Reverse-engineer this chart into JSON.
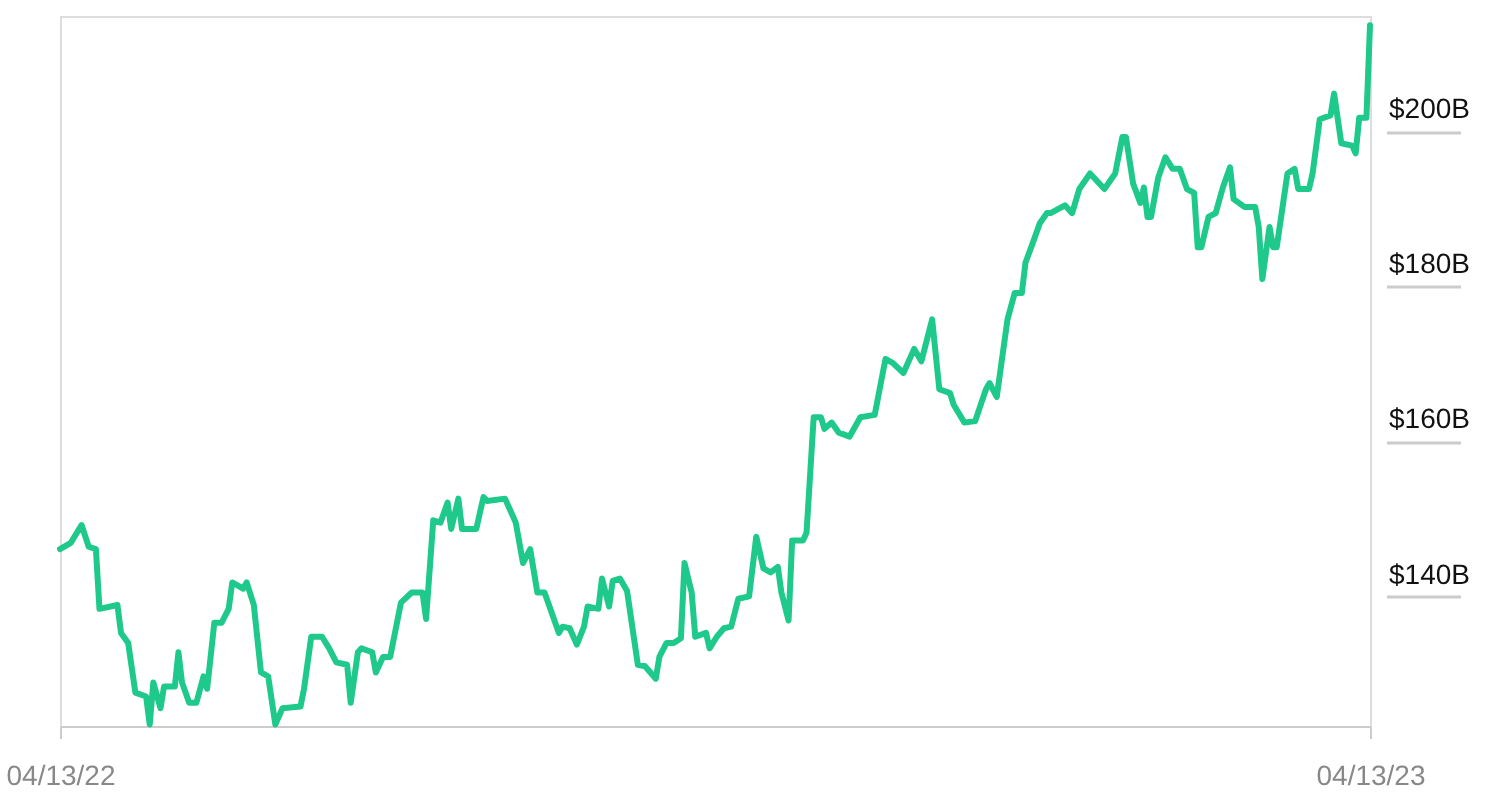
{
  "chart_data": {
    "type": "line",
    "x": [
      "2022-04-13",
      "2022-04-16",
      "2022-04-19",
      "2022-04-21",
      "2022-04-23",
      "2022-04-24",
      "2022-04-29",
      "2022-04-30",
      "2022-05-02",
      "2022-05-04",
      "2022-05-07",
      "2022-05-08",
      "2022-05-09",
      "2022-05-11",
      "2022-05-12",
      "2022-05-15",
      "2022-05-16",
      "2022-05-17",
      "2022-05-19",
      "2022-05-21",
      "2022-05-23",
      "2022-05-24",
      "2022-05-26",
      "2022-05-28",
      "2022-05-30",
      "2022-05-31",
      "2022-06-03",
      "2022-06-04",
      "2022-06-06",
      "2022-06-08",
      "2022-06-10",
      "2022-06-12",
      "2022-06-14",
      "2022-06-19",
      "2022-06-20",
      "2022-06-22",
      "2022-06-25",
      "2022-06-27",
      "2022-06-29",
      "2022-07-02",
      "2022-07-03",
      "2022-07-05",
      "2022-07-06",
      "2022-07-09",
      "2022-07-10",
      "2022-07-12",
      "2022-07-14",
      "2022-07-17",
      "2022-07-20",
      "2022-07-23",
      "2022-07-24",
      "2022-07-26",
      "2022-07-28",
      "2022-07-30",
      "2022-07-31",
      "2022-08-02",
      "2022-08-03",
      "2022-08-07",
      "2022-08-08",
      "2022-08-09",
      "2022-08-10",
      "2022-08-15",
      "2022-08-18",
      "2022-08-20",
      "2022-08-22",
      "2022-08-24",
      "2022-08-26",
      "2022-08-28",
      "2022-08-30",
      "2022-08-31",
      "2022-09-02",
      "2022-09-04",
      "2022-09-06",
      "2022-09-07",
      "2022-09-10",
      "2022-09-11",
      "2022-09-13",
      "2022-09-14",
      "2022-09-16",
      "2022-09-18",
      "2022-09-21",
      "2022-09-23",
      "2022-09-26",
      "2022-09-27",
      "2022-09-29",
      "2022-10-01",
      "2022-10-03",
      "2022-10-04",
      "2022-10-06",
      "2022-10-07",
      "2022-10-10",
      "2022-10-11",
      "2022-10-13",
      "2022-10-15",
      "2022-10-17",
      "2022-10-19",
      "2022-10-22",
      "2022-10-24",
      "2022-10-26",
      "2022-10-28",
      "2022-10-30",
      "2022-10-31",
      "2022-11-02",
      "2022-11-03",
      "2022-11-06",
      "2022-11-07",
      "2022-11-09",
      "2022-11-11",
      "2022-11-12",
      "2022-11-14",
      "2022-11-16",
      "2022-11-19",
      "2022-11-22",
      "2022-11-26",
      "2022-11-29",
      "2022-12-01",
      "2022-12-04",
      "2022-12-07",
      "2022-12-09",
      "2022-12-12",
      "2022-12-14",
      "2022-12-17",
      "2022-12-18",
      "2022-12-21",
      "2022-12-24",
      "2022-12-27",
      "2022-12-28",
      "2022-12-30",
      "2023-01-02",
      "2023-01-04",
      "2023-01-06",
      "2023-01-07",
      "2023-01-09",
      "2023-01-11",
      "2023-01-13",
      "2023-01-14",
      "2023-01-18",
      "2023-01-20",
      "2023-01-22",
      "2023-01-25",
      "2023-01-29",
      "2023-02-01",
      "2023-02-03",
      "2023-02-04",
      "2023-02-06",
      "2023-02-08",
      "2023-02-09",
      "2023-02-10",
      "2023-02-11",
      "2023-02-13",
      "2023-02-15",
      "2023-02-17",
      "2023-02-19",
      "2023-02-21",
      "2023-02-23",
      "2023-02-24",
      "2023-02-25",
      "2023-02-27",
      "2023-03-01",
      "2023-03-03",
      "2023-03-05",
      "2023-03-06",
      "2023-03-09",
      "2023-03-12",
      "2023-03-13",
      "2023-03-14",
      "2023-03-16",
      "2023-03-17",
      "2023-03-18",
      "2023-03-21",
      "2023-03-23",
      "2023-03-24",
      "2023-03-27",
      "2023-03-28",
      "2023-03-30",
      "2023-04-02",
      "2023-04-03",
      "2023-04-05",
      "2023-04-08",
      "2023-04-09",
      "2023-04-10",
      "2023-04-12",
      "2023-04-13"
    ],
    "series": [
      {
        "color": "#1ec98b",
        "values": [
          143.3,
          144.1,
          146.4,
          143.6,
          143.3,
          135.6,
          136.1,
          132.5,
          131.2,
          124.8,
          124.3,
          120.7,
          126.1,
          122.8,
          125.6,
          125.6,
          130.0,
          126.1,
          123.5,
          123.5,
          126.9,
          125.3,
          133.8,
          133.8,
          135.6,
          139.0,
          138.2,
          139.0,
          136.1,
          127.4,
          126.9,
          120.7,
          122.8,
          123.0,
          125.3,
          132.0,
          132.0,
          130.5,
          128.7,
          128.4,
          123.5,
          130.0,
          130.5,
          130.0,
          127.4,
          129.4,
          129.4,
          136.4,
          137.7,
          137.7,
          134.3,
          147.0,
          146.7,
          149.3,
          145.9,
          149.8,
          145.9,
          145.9,
          148.0,
          150.0,
          149.5,
          149.8,
          146.7,
          141.5,
          143.3,
          137.7,
          137.7,
          135.1,
          132.5,
          133.3,
          133.1,
          131.0,
          133.3,
          135.9,
          135.6,
          139.5,
          135.9,
          139.2,
          139.5,
          137.9,
          128.4,
          128.2,
          126.6,
          129.4,
          131.2,
          131.2,
          131.8,
          141.5,
          137.7,
          132.0,
          132.5,
          130.5,
          132.0,
          133.1,
          133.3,
          136.9,
          137.2,
          144.9,
          140.8,
          140.3,
          141.0,
          137.7,
          134.1,
          144.4,
          144.4,
          145.4,
          160.3,
          160.3,
          158.8,
          159.6,
          158.3,
          157.8,
          160.3,
          160.6,
          167.8,
          167.3,
          166.0,
          169.1,
          167.5,
          172.9,
          163.9,
          163.4,
          161.9,
          159.6,
          159.8,
          163.9,
          164.7,
          162.9,
          172.9,
          176.3,
          176.3,
          180.2,
          182.7,
          185.3,
          186.6,
          186.6,
          187.6,
          186.6,
          189.7,
          191.7,
          189.7,
          191.7,
          196.4,
          196.4,
          190.4,
          187.9,
          189.9,
          186.1,
          186.1,
          191.2,
          193.8,
          192.3,
          192.3,
          189.7,
          189.2,
          182.2,
          182.2,
          186.1,
          186.6,
          189.9,
          192.5,
          188.4,
          187.4,
          187.4,
          184.8,
          178.1,
          184.8,
          182.2,
          182.2,
          191.7,
          192.3,
          189.7,
          189.7,
          191.7,
          198.7,
          199.2,
          202.0,
          195.6,
          195.3,
          194.3,
          198.9,
          198.9,
          210.8
        ]
      }
    ],
    "xlim": [
      "2022-04-13",
      "2023-04-13"
    ],
    "xticks": [
      {
        "value": "2022-04-13",
        "label": "04/13/22"
      },
      {
        "value": "2023-04-13",
        "label": "04/13/23"
      }
    ],
    "ylim": [
      120.5,
      212
    ],
    "yticks": [
      {
        "value": 140,
        "label": "$140B"
      },
      {
        "value": 160,
        "label": "$160B"
      },
      {
        "value": 180,
        "label": "$180B"
      },
      {
        "value": 200,
        "label": "$200B"
      }
    ],
    "grid": false,
    "legend": false,
    "marker": "none",
    "line_style": "solid"
  }
}
